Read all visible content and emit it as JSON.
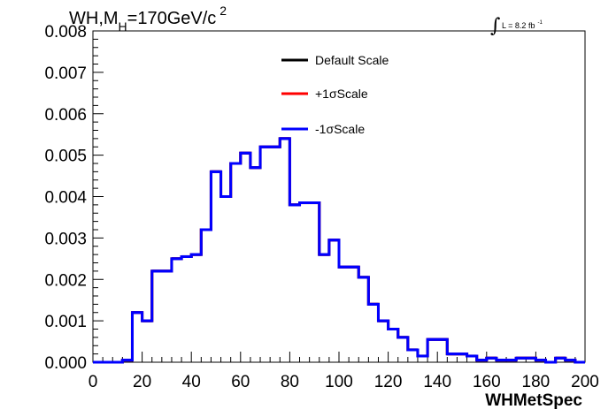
{
  "title": {
    "prefix": "WH,M",
    "subscript": "H",
    "value": "=170GeV/c",
    "superscript": "2"
  },
  "lumi": {
    "integral": "∫",
    "text": "L = 8.2 fb",
    "superscript": "-1"
  },
  "chart_data": {
    "type": "line",
    "xlabel": "WHMetSpec",
    "ylabel": "",
    "xlim": [
      0,
      200
    ],
    "ylim": [
      0,
      0.008
    ],
    "x_ticks": [
      "0",
      "20",
      "40",
      "60",
      "80",
      "100",
      "120",
      "140",
      "160",
      "180",
      "200"
    ],
    "y_ticks": [
      "0.000",
      "0.001",
      "0.002",
      "0.003",
      "0.004",
      "0.005",
      "0.006",
      "0.007",
      "0.008"
    ],
    "bin_edges": [
      0,
      4,
      8,
      12,
      16,
      20,
      24,
      28,
      32,
      36,
      40,
      44,
      48,
      52,
      56,
      60,
      64,
      68,
      72,
      76,
      80,
      84,
      88,
      92,
      96,
      100,
      104,
      108,
      112,
      116,
      120,
      124,
      128,
      132,
      136,
      140,
      144,
      148,
      152,
      156,
      160,
      164,
      168,
      172,
      176,
      180,
      184,
      188,
      192,
      196,
      200
    ],
    "series": [
      {
        "name": "Default Scale",
        "color": "#000000",
        "values": [
          0,
          0,
          0,
          5e-05,
          0.0012,
          0.001,
          0.0022,
          0.0022,
          0.0025,
          0.00255,
          0.0026,
          0.0032,
          0.0046,
          0.004,
          0.0048,
          0.00505,
          0.0047,
          0.0052,
          0.0052,
          0.0054,
          0.0038,
          0.00385,
          0.00385,
          0.0026,
          0.00295,
          0.0023,
          0.0023,
          0.00205,
          0.0014,
          0.001,
          0.0008,
          0.0006,
          0.0003,
          0.00015,
          0.00055,
          0.00055,
          0.0002,
          0.0002,
          0.00015,
          5e-05,
          0.0001,
          5e-05,
          5e-05,
          0.0001,
          0.0001,
          5e-05,
          0,
          0.0001,
          5e-05,
          0
        ]
      },
      {
        "name": "+1σScale",
        "color": "#ff0000",
        "values": [
          0,
          0,
          0,
          5e-05,
          0.0012,
          0.001,
          0.0022,
          0.0022,
          0.0025,
          0.00255,
          0.0026,
          0.0032,
          0.0046,
          0.004,
          0.0048,
          0.00505,
          0.0047,
          0.0052,
          0.0052,
          0.0054,
          0.0038,
          0.00385,
          0.00385,
          0.0026,
          0.00295,
          0.0023,
          0.0023,
          0.00205,
          0.0014,
          0.001,
          0.0008,
          0.0006,
          0.0003,
          0.00015,
          0.00055,
          0.00055,
          0.0002,
          0.0002,
          0.00015,
          5e-05,
          0.0001,
          5e-05,
          5e-05,
          0.0001,
          0.0001,
          5e-05,
          0,
          0.0001,
          5e-05,
          0
        ]
      },
      {
        "name": "-1σScale",
        "color": "#0000ff",
        "values": [
          0,
          0,
          0,
          5e-05,
          0.0012,
          0.001,
          0.0022,
          0.0022,
          0.0025,
          0.00255,
          0.0026,
          0.0032,
          0.0046,
          0.004,
          0.0048,
          0.00505,
          0.0047,
          0.0052,
          0.0052,
          0.0054,
          0.0038,
          0.00385,
          0.00385,
          0.0026,
          0.00295,
          0.0023,
          0.0023,
          0.00205,
          0.0014,
          0.001,
          0.0008,
          0.0006,
          0.0003,
          0.00015,
          0.00055,
          0.00055,
          0.0002,
          0.0002,
          0.00015,
          5e-05,
          0.0001,
          5e-05,
          5e-05,
          0.0001,
          0.0001,
          5e-05,
          0,
          0.0001,
          5e-05,
          0
        ]
      }
    ],
    "legend_position": "top-center",
    "grid": false
  }
}
